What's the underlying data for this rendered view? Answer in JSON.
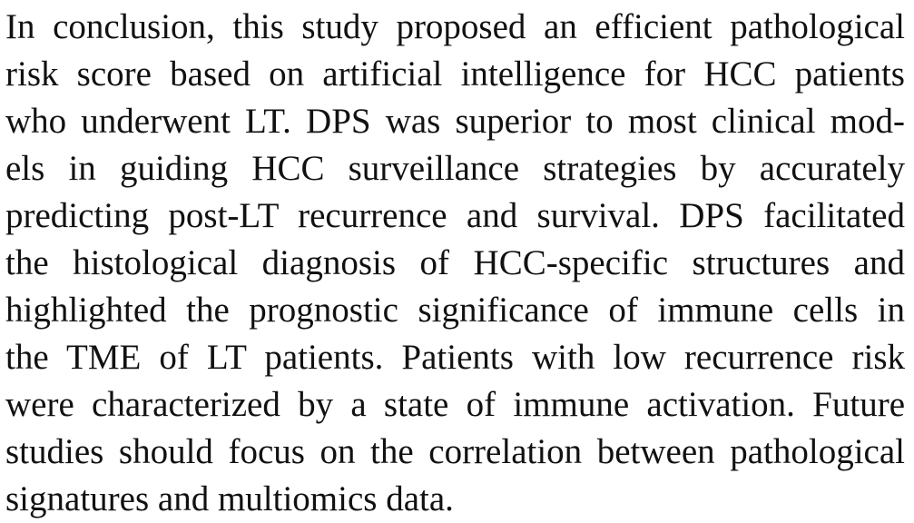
{
  "paragraph": {
    "lines": [
      "In conclusion, this study proposed an efficient pathological",
      "risk score based on artificial intelligence for HCC patients",
      "who underwent LT. DPS was superior to most clinical mod-",
      "els in guiding HCC surveillance strategies by accurately",
      "predicting post-LT recurrence and survival. DPS facilitated",
      "the histological diagnosis of HCC-specific structures and",
      "highlighted the prognostic significance of immune cells in",
      "the TME of LT patients. Patients with low recurrence risk",
      "were characterized by a state of immune activation. Future",
      "studies should focus on the correlation between pathological",
      "signatures and multiomics data."
    ]
  }
}
